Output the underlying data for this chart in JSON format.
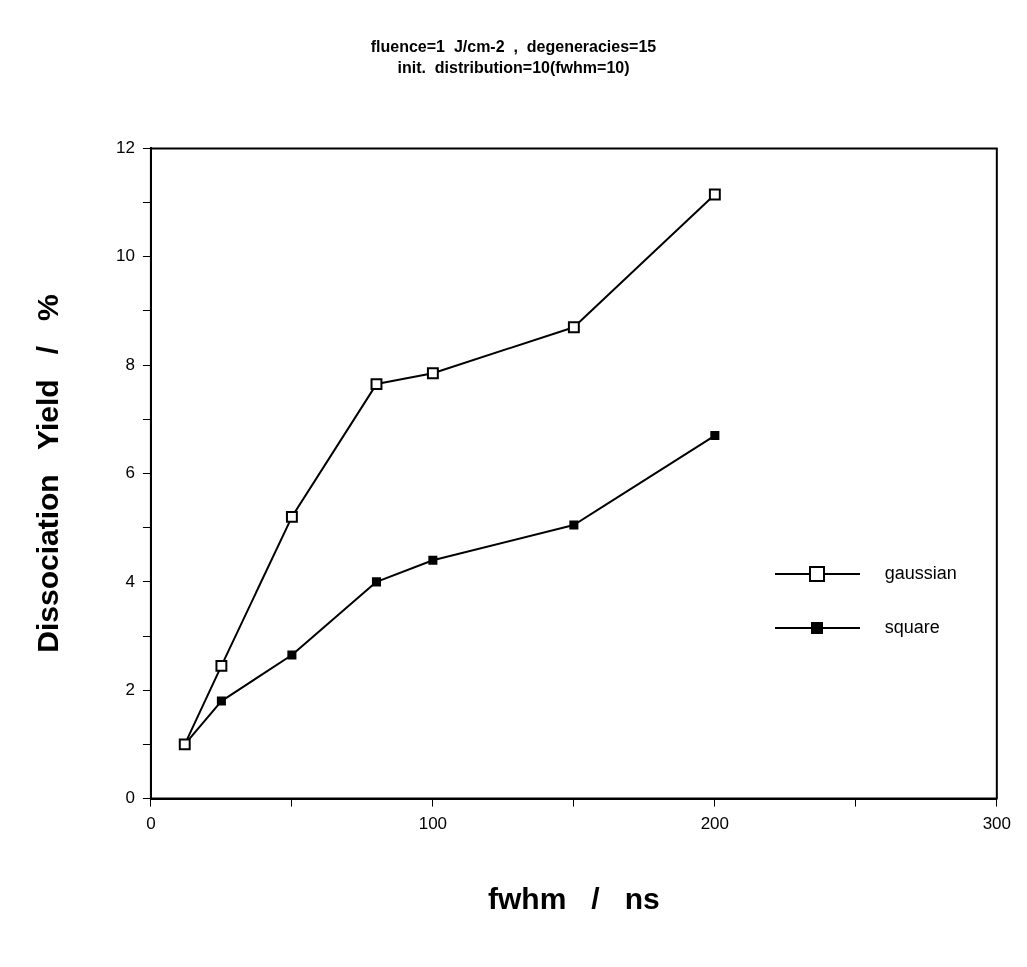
{
  "chart_data": {
    "type": "line",
    "title": "fluence=1  J/cm-2  ,  degeneracies=15",
    "subtitle": "init.  distribution=10(fwhm=10)",
    "xlabel": "fwhm   /   ns",
    "ylabel": "Dissociation   Yield   /   %",
    "x": [
      12,
      25,
      50,
      80,
      100,
      150,
      200
    ],
    "series": [
      {
        "name": "gaussian",
        "color": "#000000",
        "values": [
          1.0,
          2.45,
          5.2,
          7.65,
          7.85,
          8.7,
          11.15
        ]
      },
      {
        "name": "square",
        "color": "#000000",
        "values": [
          1.0,
          1.8,
          2.65,
          4.0,
          4.4,
          5.05,
          6.7
        ]
      }
    ],
    "xlim": [
      0,
      300
    ],
    "xticks": [
      0,
      {
        "value": 50,
        "label": null
      },
      100,
      {
        "value": 150,
        "label": null
      },
      200,
      {
        "value": 250,
        "label": null
      },
      300
    ],
    "ylim": [
      0,
      12
    ],
    "yticks": [
      0,
      {
        "value": 1,
        "label": null
      },
      2,
      {
        "value": 3,
        "label": null
      },
      4,
      {
        "value": 5,
        "label": null
      },
      6,
      {
        "value": 7,
        "label": null
      },
      8,
      {
        "value": 9,
        "label": null
      },
      10,
      {
        "value": 11,
        "label": null
      },
      12
    ],
    "grid": false,
    "legend": "bottom right",
    "marker": "square",
    "line_style": "solid"
  }
}
